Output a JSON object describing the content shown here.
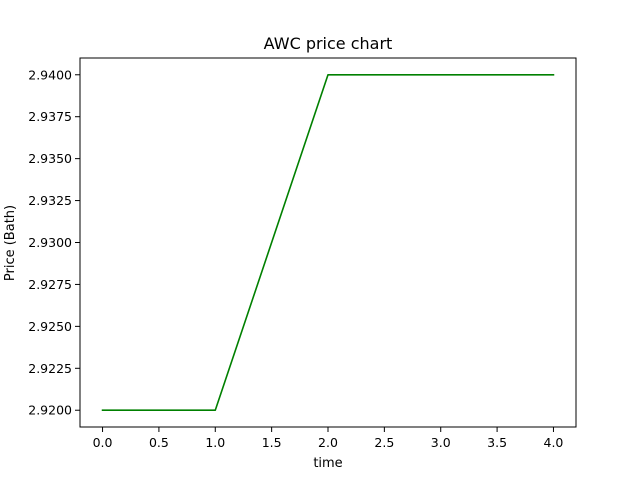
{
  "chart_data": {
    "type": "line",
    "title": "AWC price chart",
    "xlabel": "time",
    "ylabel": "Price (Bath)",
    "x": [
      0,
      1,
      2,
      3,
      4
    ],
    "series": [
      {
        "values": [
          2.92,
          2.92,
          2.94,
          2.94,
          2.94
        ],
        "color": "#008000"
      }
    ],
    "xlim": [
      -0.2,
      4.2
    ],
    "ylim": [
      2.919,
      2.941
    ],
    "xticks": [
      "0.0",
      "0.5",
      "1.0",
      "1.5",
      "2.0",
      "2.5",
      "3.0",
      "3.5",
      "4.0"
    ],
    "yticks": [
      "2.9200",
      "2.9225",
      "2.9250",
      "2.9275",
      "2.9300",
      "2.9325",
      "2.9350",
      "2.9375",
      "2.9400"
    ],
    "grid": false,
    "legend": "none"
  }
}
